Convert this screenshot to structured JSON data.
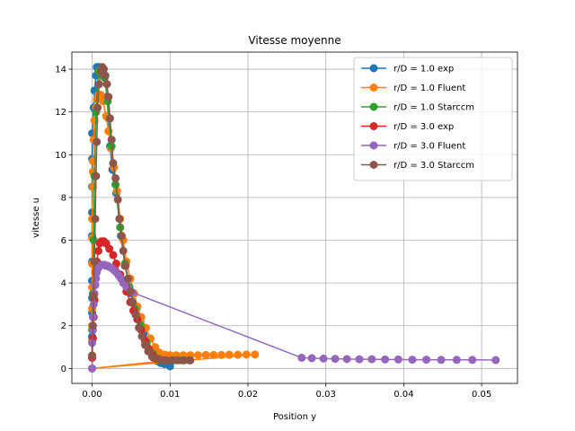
{
  "chart_data": {
    "type": "line",
    "title": "Vitesse moyenne",
    "xlabel": "Position y",
    "ylabel": "vitesse u",
    "xlim": [
      -0.0026,
      0.0546
    ],
    "ylim": [
      -0.7,
      14.8
    ],
    "xticks": [
      0.0,
      0.01,
      0.02,
      0.03,
      0.04,
      0.05
    ],
    "xtick_labels": [
      "0.00",
      "0.01",
      "0.02",
      "0.03",
      "0.04",
      "0.05"
    ],
    "yticks": [
      0,
      2,
      4,
      6,
      8,
      10,
      12,
      14
    ],
    "ytick_labels": [
      "0",
      "2",
      "4",
      "6",
      "8",
      "10",
      "12",
      "14"
    ],
    "grid": true,
    "legend": "top-right",
    "series": [
      {
        "name": "r/D = 1.0 exp",
        "color": "#1f77b4",
        "points": [
          [
            0.0,
            0.5
          ],
          [
            0.0,
            1.5
          ],
          [
            0.0,
            2.6
          ],
          [
            0.0,
            3.3
          ],
          [
            0.0,
            4.1
          ],
          [
            0.0,
            5.0
          ],
          [
            0.0,
            6.2
          ],
          [
            0.0,
            7.3
          ],
          [
            0.0,
            8.5
          ],
          [
            0.0,
            9.8
          ],
          [
            0.0,
            11.0
          ],
          [
            0.0002,
            12.2
          ],
          [
            0.0003,
            13.0
          ],
          [
            0.0005,
            13.7
          ],
          [
            0.0006,
            14.1
          ],
          [
            0.0009,
            14.1
          ],
          [
            0.0012,
            14.0
          ],
          [
            0.0016,
            13.7
          ],
          [
            0.0019,
            12.7
          ],
          [
            0.0021,
            11.7
          ],
          [
            0.0023,
            10.4
          ],
          [
            0.0026,
            9.3
          ],
          [
            0.0031,
            8.2
          ],
          [
            0.0037,
            6.2
          ],
          [
            0.0042,
            4.8
          ],
          [
            0.0046,
            4.2
          ],
          [
            0.0051,
            3.5
          ],
          [
            0.0057,
            2.8
          ],
          [
            0.0062,
            2.2
          ],
          [
            0.0066,
            1.6
          ],
          [
            0.007,
            1.1
          ],
          [
            0.0074,
            0.8
          ],
          [
            0.0079,
            0.5
          ],
          [
            0.0083,
            0.35
          ],
          [
            0.0088,
            0.25
          ],
          [
            0.0093,
            0.2
          ],
          [
            0.01,
            0.1
          ]
        ]
      },
      {
        "name": "r/D = 1.0 Fluent",
        "color": "#ff7f0e",
        "points": [
          [
            0.0,
            0.0
          ],
          [
            0.0,
            0.6
          ],
          [
            0.0,
            1.3
          ],
          [
            0.0,
            2.0
          ],
          [
            0.0,
            2.8
          ],
          [
            0.0,
            3.8
          ],
          [
            0.0,
            4.9
          ],
          [
            0.0,
            6.1
          ],
          [
            0.0,
            7.0
          ],
          [
            0.0001,
            8.5
          ],
          [
            0.0001,
            9.2
          ],
          [
            0.0001,
            9.7
          ],
          [
            0.0002,
            10.7
          ],
          [
            0.0003,
            11.6
          ],
          [
            0.0005,
            12.2
          ],
          [
            0.0006,
            12.6
          ],
          [
            0.0008,
            12.8
          ],
          [
            0.0011,
            12.8
          ],
          [
            0.0014,
            12.5
          ],
          [
            0.0018,
            11.8
          ],
          [
            0.0021,
            11.1
          ],
          [
            0.0024,
            10.3
          ],
          [
            0.0028,
            9.4
          ],
          [
            0.0032,
            8.3
          ],
          [
            0.0036,
            7.0
          ],
          [
            0.004,
            6.0
          ],
          [
            0.0044,
            5.0
          ],
          [
            0.0049,
            4.2
          ],
          [
            0.0054,
            3.5
          ],
          [
            0.0058,
            2.9
          ],
          [
            0.0063,
            2.4
          ],
          [
            0.0069,
            1.9
          ],
          [
            0.0075,
            1.4
          ],
          [
            0.0081,
            1.0
          ],
          [
            0.0086,
            0.75
          ],
          [
            0.0093,
            0.65
          ],
          [
            0.01,
            0.62
          ],
          [
            0.0108,
            0.62
          ],
          [
            0.0117,
            0.62
          ],
          [
            0.0126,
            0.62
          ],
          [
            0.0136,
            0.62
          ],
          [
            0.0146,
            0.63
          ],
          [
            0.0156,
            0.63
          ],
          [
            0.0166,
            0.63
          ],
          [
            0.0176,
            0.64
          ],
          [
            0.0187,
            0.64
          ],
          [
            0.0198,
            0.65
          ],
          [
            0.0209,
            0.65
          ],
          [
            0.0,
            0.0
          ],
          [
            0.0104,
            0.4
          ]
        ]
      },
      {
        "name": "r/D = 1.0 Starccm",
        "color": "#2ca02c",
        "points": [
          [
            0.0,
            0.6
          ],
          [
            0.0,
            1.8
          ],
          [
            0.0001,
            3.5
          ],
          [
            0.0002,
            6.0
          ],
          [
            0.0003,
            9.0
          ],
          [
            0.0005,
            12.0
          ],
          [
            0.0008,
            13.9
          ],
          [
            0.0012,
            14.0
          ],
          [
            0.0016,
            13.6
          ],
          [
            0.002,
            12.5
          ],
          [
            0.0025,
            10.4
          ],
          [
            0.003,
            8.6
          ],
          [
            0.0036,
            6.6
          ],
          [
            0.0042,
            4.9
          ],
          [
            0.0048,
            3.8
          ],
          [
            0.0055,
            2.8
          ],
          [
            0.0062,
            2.0
          ],
          [
            0.007,
            1.2
          ],
          [
            0.0078,
            0.7
          ],
          [
            0.0086,
            0.45
          ],
          [
            0.0095,
            0.38
          ],
          [
            0.0105,
            0.38
          ],
          [
            0.0115,
            0.38
          ],
          [
            0.0125,
            0.38
          ]
        ]
      },
      {
        "name": "r/D = 3.0 exp",
        "color": "#d62728",
        "points": [
          [
            0.0,
            0.5
          ],
          [
            0.0001,
            1.4
          ],
          [
            0.0002,
            2.4
          ],
          [
            0.0003,
            3.2
          ],
          [
            0.0004,
            3.9
          ],
          [
            0.0005,
            4.5
          ],
          [
            0.0006,
            5.0
          ],
          [
            0.0008,
            5.5
          ],
          [
            0.001,
            5.85
          ],
          [
            0.0012,
            5.95
          ],
          [
            0.0015,
            5.95
          ],
          [
            0.0018,
            5.85
          ],
          [
            0.0022,
            5.6
          ],
          [
            0.0027,
            5.3
          ],
          [
            0.0031,
            4.9
          ],
          [
            0.0036,
            4.4
          ],
          [
            0.004,
            4.0
          ],
          [
            0.0044,
            3.6
          ],
          [
            0.0049,
            3.1
          ],
          [
            0.0053,
            2.7
          ],
          [
            0.0058,
            2.3
          ],
          [
            0.0063,
            1.8
          ],
          [
            0.0068,
            1.3
          ],
          [
            0.0073,
            0.9
          ],
          [
            0.0078,
            0.6
          ],
          [
            0.0083,
            0.45
          ],
          [
            0.0088,
            0.4
          ],
          [
            0.0094,
            0.38
          ]
        ]
      },
      {
        "name": "r/D = 3.0 Fluent",
        "color": "#9467bd",
        "points": [
          [
            0.0,
            0.0
          ],
          [
            0.0,
            0.6
          ],
          [
            0.0,
            1.2
          ],
          [
            0.0001,
            1.8
          ],
          [
            0.0001,
            2.4
          ],
          [
            0.0002,
            3.0
          ],
          [
            0.0003,
            3.5
          ],
          [
            0.0004,
            3.9
          ],
          [
            0.0005,
            4.2
          ],
          [
            0.0006,
            4.5
          ],
          [
            0.0008,
            4.7
          ],
          [
            0.001,
            4.8
          ],
          [
            0.0012,
            4.85
          ],
          [
            0.0014,
            4.85
          ],
          [
            0.0016,
            4.85
          ],
          [
            0.0018,
            4.8
          ],
          [
            0.002,
            4.8
          ],
          [
            0.0022,
            4.75
          ],
          [
            0.0025,
            4.7
          ],
          [
            0.0028,
            4.6
          ],
          [
            0.0031,
            4.5
          ],
          [
            0.0034,
            4.35
          ],
          [
            0.0037,
            4.2
          ],
          [
            0.004,
            4.0
          ],
          [
            0.0044,
            3.8
          ],
          [
            0.0048,
            3.7
          ],
          [
            0.0052,
            3.55
          ],
          [
            0.0269,
            0.5
          ],
          [
            0.0282,
            0.48
          ],
          [
            0.0297,
            0.46
          ],
          [
            0.0312,
            0.45
          ],
          [
            0.0327,
            0.44
          ],
          [
            0.0343,
            0.43
          ],
          [
            0.0359,
            0.43
          ],
          [
            0.0376,
            0.42
          ],
          [
            0.0393,
            0.42
          ],
          [
            0.0411,
            0.41
          ],
          [
            0.0429,
            0.41
          ],
          [
            0.0448,
            0.4
          ],
          [
            0.0468,
            0.4
          ],
          [
            0.0488,
            0.4
          ],
          [
            0.0518,
            0.39
          ]
        ]
      },
      {
        "name": "r/D = 3.0 Starccm",
        "color": "#8c564b",
        "points": [
          [
            0.0,
            0.6
          ],
          [
            0.0001,
            2.0
          ],
          [
            0.0002,
            3.4
          ],
          [
            0.0003,
            5.0
          ],
          [
            0.0004,
            7.0
          ],
          [
            0.0005,
            9.0
          ],
          [
            0.0006,
            10.6
          ],
          [
            0.0007,
            12.2
          ],
          [
            0.0009,
            13.3
          ],
          [
            0.0011,
            13.9
          ],
          [
            0.0013,
            14.1
          ],
          [
            0.0015,
            14.0
          ],
          [
            0.0017,
            13.7
          ],
          [
            0.0019,
            13.3
          ],
          [
            0.0021,
            12.7
          ],
          [
            0.0023,
            11.7
          ],
          [
            0.0025,
            10.7
          ],
          [
            0.0027,
            9.6
          ],
          [
            0.003,
            8.9
          ],
          [
            0.0033,
            7.9
          ],
          [
            0.0035,
            7.0
          ],
          [
            0.0038,
            6.2
          ],
          [
            0.004,
            5.5
          ],
          [
            0.0043,
            4.8
          ],
          [
            0.0046,
            4.2
          ],
          [
            0.0049,
            3.6
          ],
          [
            0.0052,
            3.1
          ],
          [
            0.0056,
            2.5
          ],
          [
            0.006,
            1.9
          ],
          [
            0.0064,
            1.5
          ],
          [
            0.0068,
            1.1
          ],
          [
            0.0072,
            0.8
          ],
          [
            0.0077,
            0.55
          ],
          [
            0.0082,
            0.45
          ],
          [
            0.0088,
            0.4
          ],
          [
            0.0095,
            0.38
          ],
          [
            0.0102,
            0.38
          ],
          [
            0.011,
            0.38
          ],
          [
            0.0118,
            0.38
          ],
          [
            0.0126,
            0.38
          ]
        ]
      }
    ]
  }
}
